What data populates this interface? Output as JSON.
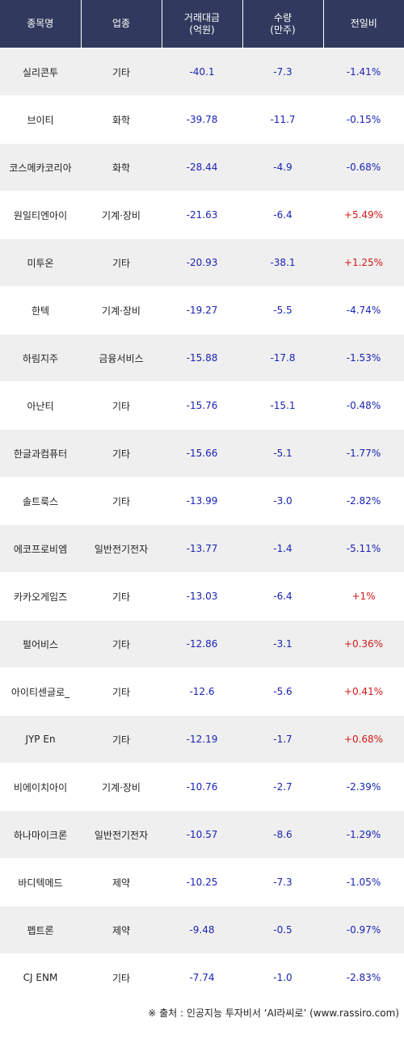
{
  "header": {
    "name": "종목명",
    "sector": "업종",
    "amount": "거래대금\n(억원)",
    "volume": "수량\n(만주)",
    "change": "전일비"
  },
  "rows": [
    {
      "name": "실리콘투",
      "sector": "기타",
      "amount": "-40.1",
      "volume": "-7.3",
      "change": "-1.41%",
      "dir": "down"
    },
    {
      "name": "브이티",
      "sector": "화학",
      "amount": "-39.78",
      "volume": "-11.7",
      "change": "-0.15%",
      "dir": "down"
    },
    {
      "name": "코스메카코리아",
      "sector": "화학",
      "amount": "-28.44",
      "volume": "-4.9",
      "change": "-0.68%",
      "dir": "down"
    },
    {
      "name": "원일티엔아이",
      "sector": "기계·장비",
      "amount": "-21.63",
      "volume": "-6.4",
      "change": "+5.49%",
      "dir": "up"
    },
    {
      "name": "미투온",
      "sector": "기타",
      "amount": "-20.93",
      "volume": "-38.1",
      "change": "+1.25%",
      "dir": "up"
    },
    {
      "name": "한텍",
      "sector": "기계·장비",
      "amount": "-19.27",
      "volume": "-5.5",
      "change": "-4.74%",
      "dir": "down"
    },
    {
      "name": "하림지주",
      "sector": "금융서비스",
      "amount": "-15.88",
      "volume": "-17.8",
      "change": "-1.53%",
      "dir": "down"
    },
    {
      "name": "아난티",
      "sector": "기타",
      "amount": "-15.76",
      "volume": "-15.1",
      "change": "-0.48%",
      "dir": "down"
    },
    {
      "name": "한글과컴퓨터",
      "sector": "기타",
      "amount": "-15.66",
      "volume": "-5.1",
      "change": "-1.77%",
      "dir": "down"
    },
    {
      "name": "솔트룩스",
      "sector": "기타",
      "amount": "-13.99",
      "volume": "-3.0",
      "change": "-2.82%",
      "dir": "down"
    },
    {
      "name": "에코프로비엠",
      "sector": "일반전기전자",
      "amount": "-13.77",
      "volume": "-1.4",
      "change": "-5.11%",
      "dir": "down"
    },
    {
      "name": "카카오게임즈",
      "sector": "기타",
      "amount": "-13.03",
      "volume": "-6.4",
      "change": "+1%",
      "dir": "up"
    },
    {
      "name": "펄어비스",
      "sector": "기타",
      "amount": "-12.86",
      "volume": "-3.1",
      "change": "+0.36%",
      "dir": "up"
    },
    {
      "name": "아이티센글로_",
      "sector": "기타",
      "amount": "-12.6",
      "volume": "-5.6",
      "change": "+0.41%",
      "dir": "up"
    },
    {
      "name": "JYP En",
      "sector": "기타",
      "amount": "-12.19",
      "volume": "-1.7",
      "change": "+0.68%",
      "dir": "up"
    },
    {
      "name": "비에이치아이",
      "sector": "기계·장비",
      "amount": "-10.76",
      "volume": "-2.7",
      "change": "-2.39%",
      "dir": "down"
    },
    {
      "name": "하나마이크론",
      "sector": "일반전기전자",
      "amount": "-10.57",
      "volume": "-8.6",
      "change": "-1.29%",
      "dir": "down"
    },
    {
      "name": "바디텍메드",
      "sector": "제약",
      "amount": "-10.25",
      "volume": "-7.3",
      "change": "-1.05%",
      "dir": "down"
    },
    {
      "name": "펩트론",
      "sector": "제약",
      "amount": "-9.48",
      "volume": "-0.5",
      "change": "-0.97%",
      "dir": "down"
    },
    {
      "name": "CJ ENM",
      "sector": "기타",
      "amount": "-7.74",
      "volume": "-1.0",
      "change": "-2.83%",
      "dir": "down"
    }
  ],
  "footer": "※ 출처 : 인공지능 투자비서 ‘AI라씨로’ (www.rassiro.com)",
  "colors": {
    "header_bg": "#313a5e",
    "stripe_bg": "#efefef",
    "down": "#1a23b5",
    "up": "#d21919"
  }
}
